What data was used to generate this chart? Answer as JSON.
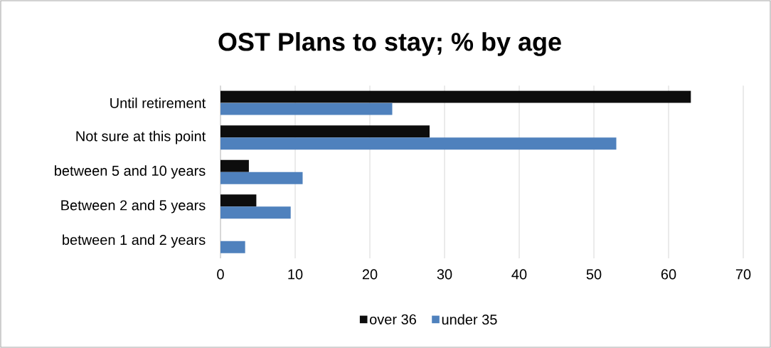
{
  "chart_data": {
    "type": "bar",
    "orientation": "horizontal",
    "title": "OST Plans to stay;    % by age",
    "categories": [
      "Until retirement",
      "Not sure at this point",
      "between 5 and 10 years",
      "Between 2 and 5 years",
      "between 1 and 2 years"
    ],
    "series": [
      {
        "name": "over 36",
        "color": "#0d0d0d",
        "values": [
          63,
          28,
          3.8,
          4.8,
          0
        ]
      },
      {
        "name": "under 35",
        "color": "#4f81bd",
        "values": [
          23,
          53,
          11,
          9.4,
          3.3
        ]
      }
    ],
    "xlim": [
      0,
      70
    ],
    "xticks": [
      0,
      10,
      20,
      30,
      40,
      50,
      60,
      70
    ],
    "grid": "x",
    "legend": "bottom"
  }
}
